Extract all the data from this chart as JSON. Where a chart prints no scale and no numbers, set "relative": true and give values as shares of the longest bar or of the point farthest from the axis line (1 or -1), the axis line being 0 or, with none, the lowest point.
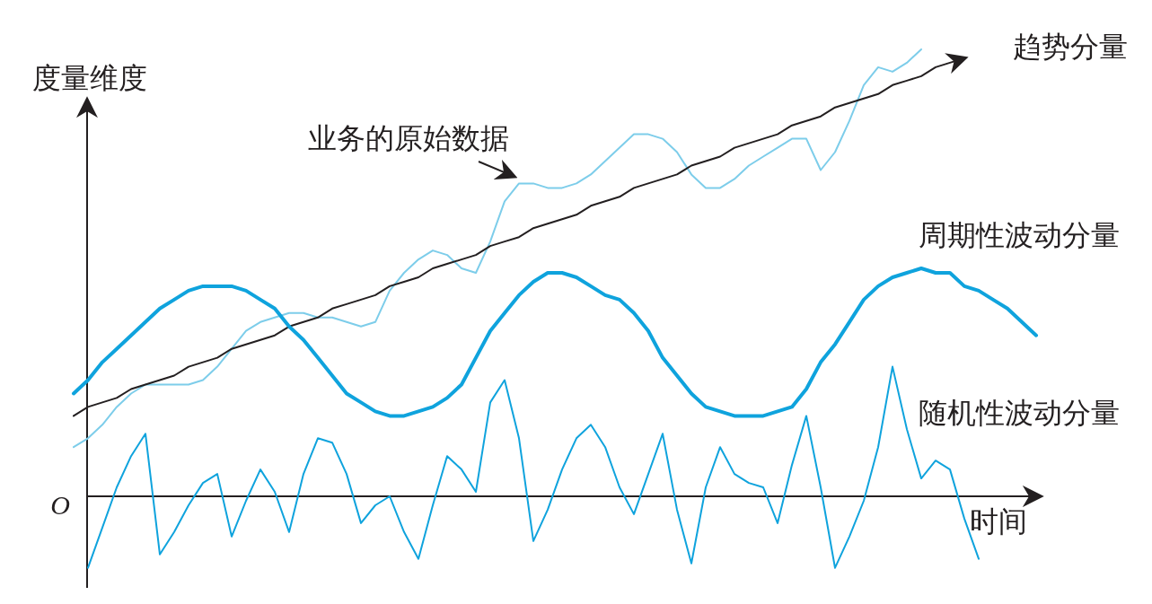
{
  "chart_data": {
    "type": "line",
    "relative": true,
    "xlabel": "时间",
    "ylabel": "度量维度",
    "annotations": [
      "O"
    ],
    "categories": [
      null,
      null,
      null,
      null,
      null,
      null,
      null,
      null,
      null,
      null,
      null,
      null,
      null,
      null,
      null,
      null,
      null,
      null,
      null,
      null,
      null,
      null,
      null,
      null,
      null,
      null,
      null,
      null,
      null,
      null,
      null,
      null,
      null,
      null,
      null,
      null,
      null,
      null,
      null,
      null,
      null,
      null,
      null,
      null,
      null,
      null,
      null,
      null,
      null,
      null,
      null,
      null,
      null,
      null,
      null,
      null,
      null,
      null,
      null,
      null,
      null,
      null,
      null,
      null,
      null,
      null,
      null,
      null
    ],
    "series": [
      {
        "name": "业务的原始数据",
        "color": "#7dcdea",
        "values": [
          0.11,
          0.13,
          0.16,
          0.2,
          0.23,
          0.25,
          0.25,
          0.25,
          0.25,
          0.26,
          0.29,
          0.33,
          0.37,
          0.39,
          0.4,
          0.41,
          0.41,
          0.4,
          0.4,
          0.39,
          0.38,
          0.39,
          0.46,
          0.5,
          0.53,
          0.55,
          0.54,
          0.51,
          0.5,
          0.57,
          0.66,
          0.7,
          0.7,
          0.69,
          0.69,
          0.7,
          0.72,
          0.75,
          0.78,
          0.81,
          0.81,
          0.8,
          0.77,
          0.72,
          0.69,
          0.69,
          0.71,
          0.74,
          0.76,
          0.78,
          0.8,
          0.8,
          0.73,
          0.77,
          0.84,
          0.92,
          0.96,
          0.95,
          0.97,
          1.0,
          null,
          null,
          null,
          null,
          null,
          null,
          null,
          null
        ]
      },
      {
        "name": "趋势分量",
        "color": "#231f20",
        "values": [
          0.18,
          0.2,
          0.21,
          0.22,
          0.24,
          0.25,
          0.26,
          0.27,
          0.29,
          0.3,
          0.31,
          0.33,
          0.34,
          0.35,
          0.36,
          0.38,
          0.39,
          0.4,
          0.42,
          0.43,
          0.44,
          0.45,
          0.47,
          0.48,
          0.49,
          0.51,
          0.52,
          0.53,
          0.54,
          0.56,
          0.57,
          0.58,
          0.6,
          0.61,
          0.62,
          0.63,
          0.65,
          0.66,
          0.67,
          0.69,
          0.7,
          0.71,
          0.72,
          0.74,
          0.75,
          0.76,
          0.78,
          0.79,
          0.8,
          0.81,
          0.83,
          0.84,
          0.85,
          0.87,
          0.88,
          0.89,
          0.9,
          0.92,
          0.93,
          0.94,
          0.96,
          0.97,
          0.98,
          null,
          null,
          null,
          null,
          null
        ]
      },
      {
        "name": "周期性波动分量",
        "color": "#0fa3dd",
        "values": [
          0.23,
          0.26,
          0.3,
          0.33,
          0.36,
          0.39,
          0.42,
          0.44,
          0.46,
          0.47,
          0.47,
          0.47,
          0.46,
          0.44,
          0.42,
          0.38,
          0.35,
          0.31,
          0.27,
          0.23,
          0.21,
          0.19,
          0.18,
          0.18,
          0.19,
          0.2,
          0.22,
          0.25,
          0.31,
          0.37,
          0.41,
          0.45,
          0.48,
          0.5,
          0.5,
          0.49,
          0.47,
          0.45,
          0.44,
          0.41,
          0.37,
          0.31,
          0.27,
          0.23,
          0.2,
          0.19,
          0.18,
          0.18,
          0.18,
          0.19,
          0.2,
          0.24,
          0.3,
          0.34,
          0.39,
          0.44,
          0.47,
          0.49,
          0.5,
          0.51,
          0.5,
          0.5,
          0.47,
          0.46,
          0.44,
          0.42,
          0.39,
          0.36
        ]
      },
      {
        "name": "随机性波动分量",
        "color": "#0fa3dd",
        "values": [
          null,
          -0.16,
          -0.07,
          0.02,
          0.09,
          0.14,
          -0.13,
          -0.08,
          -0.02,
          0.03,
          0.05,
          -0.09,
          -0.01,
          0.06,
          0.01,
          -0.08,
          0.05,
          0.13,
          0.12,
          0.05,
          -0.06,
          -0.02,
          0.0,
          -0.08,
          -0.14,
          -0.02,
          0.09,
          0.06,
          0.01,
          0.21,
          0.26,
          0.13,
          -0.1,
          -0.03,
          0.06,
          0.13,
          0.16,
          0.11,
          0.02,
          -0.04,
          0.05,
          0.14,
          -0.03,
          -0.15,
          0.02,
          0.11,
          0.05,
          0.03,
          0.02,
          -0.06,
          0.07,
          0.18,
          0.02,
          -0.16,
          -0.09,
          -0.01,
          0.11,
          0.29,
          0.15,
          0.04,
          0.08,
          0.06,
          -0.05,
          -0.14,
          null,
          null,
          null,
          null
        ]
      }
    ]
  }
}
